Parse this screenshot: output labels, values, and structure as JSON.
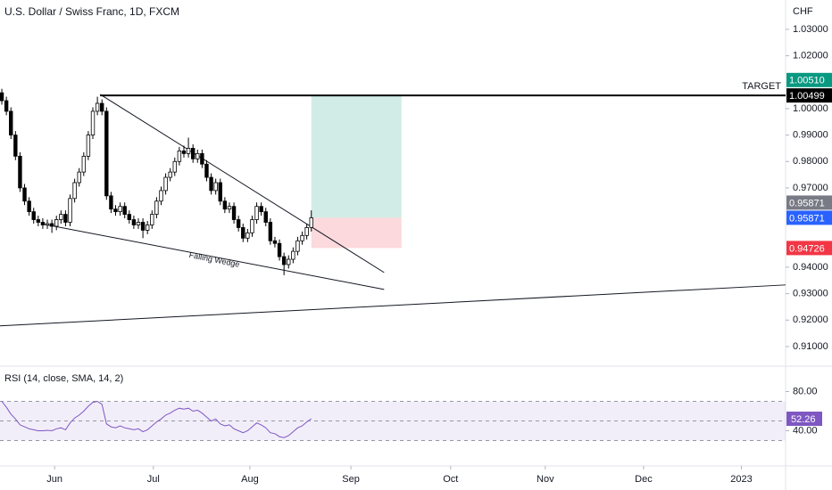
{
  "chart_data": [
    {
      "type": "candlestick",
      "title": "U.S. Dollar / Swiss Franc, 1D, FXCM",
      "currency": "CHF",
      "categories": [
        null,
        null,
        null,
        null,
        null,
        null,
        null,
        null,
        null,
        null,
        null,
        null,
        null,
        null,
        null,
        null,
        null,
        null,
        null,
        null,
        null,
        null,
        null,
        null,
        null,
        null,
        null,
        null,
        null,
        null,
        null,
        null,
        null,
        null,
        null,
        null,
        null,
        null,
        null,
        null,
        null,
        null,
        null,
        null,
        null,
        null,
        null,
        null,
        null,
        null,
        null,
        null,
        null,
        null,
        null,
        null,
        null,
        null,
        null,
        null,
        null,
        null,
        null,
        null,
        null,
        null,
        null,
        null,
        null
      ],
      "open": [
        1.006,
        1.003,
        0.999,
        0.99,
        0.982,
        0.97,
        0.965,
        0.961,
        0.958,
        0.957,
        0.956,
        0.9565,
        0.9555,
        0.958,
        0.96,
        0.957,
        0.966,
        0.972,
        0.976,
        0.982,
        0.99,
        0.999,
        1.002,
        0.999,
        0.967,
        0.962,
        0.961,
        0.963,
        0.96,
        0.958,
        0.956,
        0.957,
        0.954,
        0.956,
        0.96,
        0.965,
        0.969,
        0.974,
        0.976,
        0.98,
        0.984,
        0.983,
        0.985,
        0.981,
        0.983,
        0.979,
        0.974,
        0.969,
        0.972,
        0.965,
        0.962,
        0.963,
        0.958,
        0.955,
        0.951,
        0.953,
        0.958,
        0.963,
        0.961,
        0.957,
        0.95,
        0.949,
        0.944,
        0.941,
        0.943,
        0.946,
        0.95,
        0.952,
        0.955
      ],
      "high": [
        1.0075,
        1.0045,
        1.0005,
        0.9915,
        0.9835,
        0.9715,
        0.9665,
        0.9625,
        0.9595,
        0.9585,
        0.958,
        0.958,
        0.9595,
        0.9615,
        0.9615,
        0.9675,
        0.9735,
        0.9775,
        0.9835,
        0.9915,
        1.0005,
        1.0045,
        1.0035,
        1.0005,
        0.9685,
        0.9635,
        0.9645,
        0.9645,
        0.9615,
        0.9595,
        0.9585,
        0.9585,
        0.9575,
        0.9615,
        0.9665,
        0.9705,
        0.9755,
        0.9775,
        0.9815,
        0.9855,
        0.986,
        0.989,
        0.9865,
        0.9845,
        0.9845,
        0.9805,
        0.9755,
        0.9735,
        0.9735,
        0.9665,
        0.9645,
        0.9645,
        0.9595,
        0.9565,
        0.9545,
        0.9595,
        0.9645,
        0.9645,
        0.9625,
        0.9585,
        0.9515,
        0.9505,
        0.9455,
        0.9445,
        0.9475,
        0.9515,
        0.9535,
        0.9565,
        0.9615
      ],
      "low": [
        1.0015,
        0.9975,
        0.9885,
        0.9805,
        0.9685,
        0.9635,
        0.9595,
        0.9565,
        0.9555,
        0.9545,
        0.9545,
        0.953,
        0.954,
        0.9565,
        0.9555,
        0.9555,
        0.9645,
        0.9705,
        0.9745,
        0.9805,
        0.9885,
        0.9975,
        0.9975,
        0.9655,
        0.9605,
        0.9595,
        0.9595,
        0.9585,
        0.9565,
        0.9545,
        0.9545,
        0.951,
        0.9525,
        0.9545,
        0.9585,
        0.9635,
        0.9675,
        0.9725,
        0.9745,
        0.9785,
        0.9815,
        0.9815,
        0.9795,
        0.9795,
        0.9775,
        0.9725,
        0.9675,
        0.9675,
        0.9635,
        0.9605,
        0.9605,
        0.9565,
        0.9535,
        0.9495,
        0.9495,
        0.9515,
        0.9565,
        0.9595,
        0.9555,
        0.9485,
        0.9475,
        0.9425,
        0.937,
        0.9395,
        0.9415,
        0.9445,
        0.9485,
        0.9505,
        0.9535
      ],
      "close": [
        1.003,
        0.999,
        0.99,
        0.982,
        0.97,
        0.965,
        0.961,
        0.958,
        0.957,
        0.956,
        0.9565,
        0.9555,
        0.958,
        0.96,
        0.957,
        0.966,
        0.972,
        0.976,
        0.982,
        0.99,
        0.999,
        1.002,
        0.999,
        0.967,
        0.962,
        0.961,
        0.963,
        0.96,
        0.958,
        0.956,
        0.957,
        0.954,
        0.956,
        0.96,
        0.965,
        0.969,
        0.974,
        0.976,
        0.98,
        0.984,
        0.983,
        0.985,
        0.981,
        0.983,
        0.979,
        0.974,
        0.969,
        0.972,
        0.965,
        0.962,
        0.963,
        0.958,
        0.955,
        0.951,
        0.953,
        0.958,
        0.963,
        0.961,
        0.957,
        0.95,
        0.949,
        0.944,
        0.941,
        0.943,
        0.946,
        0.95,
        0.952,
        0.955,
        0.9587
      ],
      "up_color": "#ffffff",
      "down_color": "#000000",
      "xlim": [
        -0.4,
        172.2
      ],
      "ylim": [
        0.9029,
        1.0411
      ],
      "yticks": [
        {
          "value": 1.03,
          "label": "1.03000"
        },
        {
          "value": 1.02,
          "label": "1.02000"
        },
        {
          "value": 1.0,
          "label": "1.00000"
        },
        {
          "value": 0.99,
          "label": "0.99000"
        },
        {
          "value": 0.98,
          "label": "0.98000"
        },
        {
          "value": 0.97,
          "label": "0.97000"
        },
        {
          "value": 0.94,
          "label": "0.94000"
        },
        {
          "value": 0.93,
          "label": "0.93000"
        },
        {
          "value": 0.92,
          "label": "0.92000"
        },
        {
          "value": 0.91,
          "label": "0.91000"
        }
      ],
      "position": {
        "target": 1.0051,
        "entry": 0.95871,
        "stop": 0.94726,
        "profit_color": "#d1ece6",
        "loss_color": "#fcd9dc"
      },
      "price_labels": [
        {
          "value": 1.00499,
          "label": "1.00499",
          "color": "#000000"
        },
        {
          "value": 1.0051,
          "label": "1.00510",
          "color": "#089981"
        },
        {
          "value": 0.95871,
          "label": "0.95871",
          "color": "#2962ff"
        },
        {
          "value": 0.95871,
          "label": "0.95871",
          "color": "#787b86"
        },
        {
          "value": 0.94726,
          "label": "0.94726",
          "color": "#f23645"
        }
      ],
      "target_line": {
        "label": "TARGET",
        "value": 1.00499,
        "from": 21.6
      },
      "trend_lines": [
        [
          [
            21.6,
            1.0054
          ],
          [
            84,
            0.938
          ]
        ],
        [
          [
            9.4,
            0.9562
          ],
          [
            84,
            0.9316
          ]
        ],
        [
          [
            -0.4,
            0.9178
          ],
          [
            172.2,
            0.9333
          ]
        ]
      ],
      "annotation": "Falling Wedge"
    },
    {
      "type": "line",
      "title": "RSI (14, close, SMA, 14, 2)",
      "categories": [
        null,
        null,
        null,
        null,
        null,
        null,
        null,
        null,
        null,
        null,
        null,
        null,
        null,
        null,
        null,
        null,
        null,
        null,
        null,
        null,
        null,
        null,
        null,
        null,
        null,
        null,
        null,
        null,
        null,
        null,
        null,
        null,
        null,
        null,
        null,
        null,
        null,
        null,
        null,
        null,
        null,
        null,
        null,
        null,
        null,
        null,
        null,
        null,
        null,
        null,
        null,
        null,
        null,
        null,
        null,
        null,
        null,
        null,
        null,
        null,
        null,
        null,
        null,
        null,
        null,
        null,
        null,
        null,
        null
      ],
      "values": [
        70,
        64,
        57,
        52,
        46,
        44,
        42,
        41,
        40,
        40,
        40.5,
        40,
        42,
        43,
        41,
        48,
        53,
        56,
        60,
        65,
        69,
        70,
        67,
        47,
        44,
        43,
        45,
        43,
        42,
        41,
        42,
        39,
        41,
        45,
        49,
        52,
        56,
        58,
        61,
        63,
        62,
        63,
        60,
        61,
        58,
        54,
        50,
        52,
        47,
        45,
        46,
        42,
        40,
        38,
        40,
        44,
        48,
        46,
        43,
        38,
        37,
        34,
        33,
        35,
        39,
        43,
        45,
        49,
        52.26
      ],
      "color": "#7e57c2",
      "levels": [
        70,
        50,
        30
      ],
      "xlim": [
        -0.4,
        172.2
      ],
      "ylim": [
        5,
        105
      ],
      "yticks": [
        {
          "value": 80,
          "label": "80.00"
        },
        {
          "value": 40,
          "label": "40.00"
        }
      ],
      "xticks": [
        {
          "value": 11.6,
          "label": "Jun"
        },
        {
          "value": 33.3,
          "label": "Jul"
        },
        {
          "value": 54.5,
          "label": "Aug"
        },
        {
          "value": 76.7,
          "label": "Sep"
        },
        {
          "value": 98.6,
          "label": "Oct"
        },
        {
          "value": 119.4,
          "label": "Nov"
        },
        {
          "value": 141,
          "label": "Dec"
        },
        {
          "value": 162.5,
          "label": "2023"
        }
      ]
    }
  ]
}
